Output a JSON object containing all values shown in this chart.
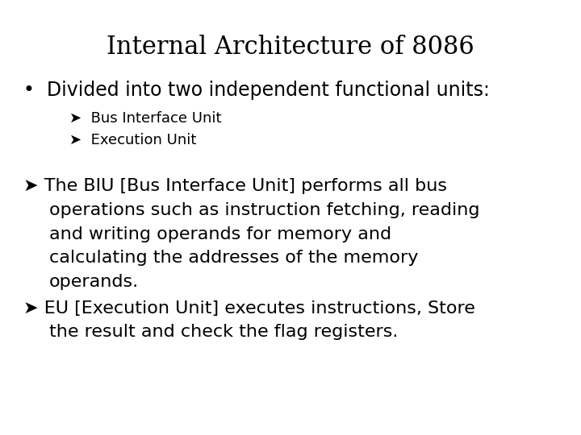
{
  "title": "Internal Architecture of 8086",
  "title_fontsize": 22,
  "title_font": "DejaVu Serif",
  "background_color": "#ffffff",
  "text_color": "#000000",
  "bullet1": "Divided into two independent functional units:",
  "bullet1_fontsize": 17,
  "sub1": "Bus Interface Unit",
  "sub2": "Execution Unit",
  "sub_fontsize": 13,
  "para_fontsize": 16,
  "arrow": "➤",
  "bullet": "•"
}
